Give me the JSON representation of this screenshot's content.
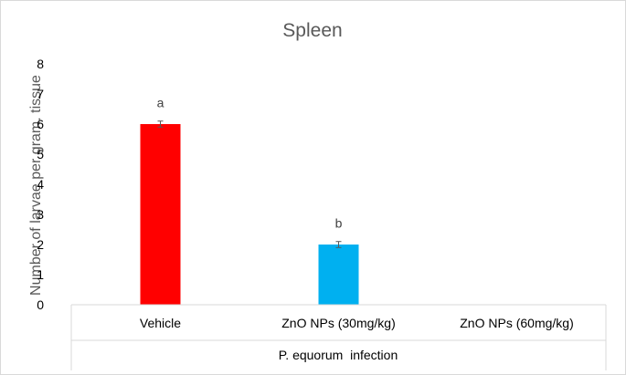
{
  "chart_data": {
    "type": "bar",
    "title": "Spleen",
    "ylabel": "Number of larvae per gram. tissue",
    "xlabel": "P. equorum  infection",
    "categories": [
      "Vehicle",
      "ZnO NPs (30mg/kg)",
      "ZnO NPs (60mg/kg)"
    ],
    "values": [
      6,
      2,
      0
    ],
    "errors": [
      0.1,
      0.1,
      0
    ],
    "significance_labels": [
      "a",
      "b",
      ""
    ],
    "bar_colors": [
      "#ff0000",
      "#00b0f0",
      "#00b0f0"
    ],
    "ylim": [
      0,
      8
    ],
    "yticks": [
      "0",
      "1",
      "2",
      "3",
      "4",
      "5",
      "6",
      "7",
      "8"
    ],
    "grid": false,
    "legend": "none"
  }
}
